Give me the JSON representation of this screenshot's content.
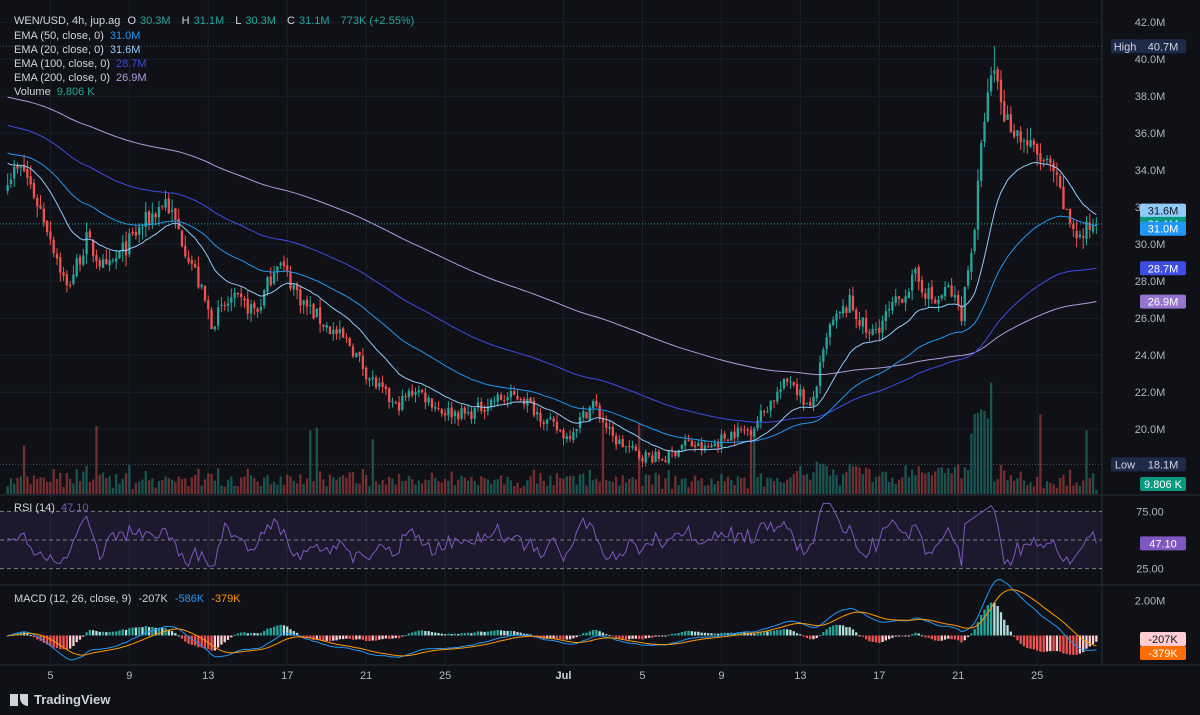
{
  "header": {
    "symbol": "WEN/USD, 4h, jup.ag",
    "o_label": "O",
    "o": "30.3M",
    "h_label": "H",
    "h": "31.1M",
    "l_label": "L",
    "l": "30.3M",
    "c_label": "C",
    "c": "31.1M",
    "change": "773K (+2.55%)"
  },
  "indicators": [
    {
      "label": "EMA (50, close, 0)",
      "value": "31.0M",
      "color": "#2196f3"
    },
    {
      "label": "EMA (20, close, 0)",
      "value": "31.6M",
      "color": "#90caf9"
    },
    {
      "label": "EMA (100, close, 0)",
      "value": "28.7M",
      "color": "#3d4de0"
    },
    {
      "label": "EMA (200, close, 0)",
      "value": "26.9M",
      "color": "#b39ddb"
    },
    {
      "label": "Volume",
      "value": "9.806 K",
      "color": "#26a69a"
    }
  ],
  "rsi": {
    "label": "RSI (14)",
    "value": "47.10",
    "color": "#7e57c2",
    "ticks": [
      "75.00",
      "25.00"
    ],
    "badge": "47.10"
  },
  "macd": {
    "label": "MACD (12, 26, close, 9)",
    "values": [
      "-207K",
      "-586K",
      "-379K"
    ],
    "value_colors": [
      "#d1d4dc",
      "#2196f3",
      "#ff9800"
    ],
    "ticks": [
      "2.00M"
    ],
    "badges": [
      "-207K",
      "-379K"
    ]
  },
  "price_badges": [
    {
      "label": "High",
      "value": "40.7M",
      "price": 40.7,
      "bg": "#1e2a4a"
    },
    {
      "label": "Low",
      "value": "18.1M",
      "price": 18.1,
      "bg": "#1e2a4a"
    },
    {
      "value": "31.6M",
      "price": 31.6,
      "bg": "#90caf9",
      "fg": "#131722"
    },
    {
      "value": "31.1M",
      "price": 31.1,
      "bg": "#089981",
      "fg": "#ffffff"
    },
    {
      "value": "31.0M",
      "price": 31.0,
      "bg": "#2196f3",
      "fg": "#ffffff"
    },
    {
      "value": "28.7M",
      "price": 28.7,
      "bg": "#3d4de0",
      "fg": "#ffffff"
    },
    {
      "value": "26.9M",
      "price": 26.9,
      "bg": "#9575cd",
      "fg": "#ffffff"
    }
  ],
  "volume_badge": "9.806 K",
  "brand": "TradingView",
  "colors": {
    "up": "#26a69a",
    "down": "#ef5350",
    "bg": "#0f1117",
    "grid": "#1c1f2a"
  },
  "chart_data": {
    "type": "candlestick",
    "title": "WEN/USD, 4h, jup.ag",
    "y_ticks": [
      20.0,
      22.0,
      24.0,
      26.0,
      28.0,
      30.0,
      32.0,
      34.0,
      36.0,
      38.0,
      40.0,
      42.0
    ],
    "y_tick_labels": [
      "20.0M",
      "22.0M",
      "24.0M",
      "26.0M",
      "28.0M",
      "30.0M",
      "32.0M",
      "34.0M",
      "36.0M",
      "38.0M",
      "40.0M",
      "42.0M"
    ],
    "ylim": [
      16.5,
      43.2
    ],
    "x_tick_labels": [
      "5",
      "9",
      "13",
      "17",
      "21",
      "25",
      "Jul",
      "5",
      "9",
      "13",
      "17",
      "21",
      "25"
    ],
    "x_tick_index": [
      13,
      37,
      61,
      85,
      109,
      133,
      169,
      193,
      217,
      241,
      265,
      289,
      313
    ],
    "close_anchors": [
      [
        0,
        33.8
      ],
      [
        5,
        34.0
      ],
      [
        12,
        31.0
      ],
      [
        18,
        27.6
      ],
      [
        24,
        30.2
      ],
      [
        30,
        28.5
      ],
      [
        40,
        30.8
      ],
      [
        48,
        32.4
      ],
      [
        56,
        29.0
      ],
      [
        62,
        25.8
      ],
      [
        68,
        27.0
      ],
      [
        76,
        26.4
      ],
      [
        82,
        29.2
      ],
      [
        90,
        26.8
      ],
      [
        98,
        25.4
      ],
      [
        104,
        24.6
      ],
      [
        110,
        22.8
      ],
      [
        118,
        21.2
      ],
      [
        124,
        22.2
      ],
      [
        132,
        21.0
      ],
      [
        140,
        20.8
      ],
      [
        148,
        21.6
      ],
      [
        156,
        21.8
      ],
      [
        164,
        20.4
      ],
      [
        170,
        19.6
      ],
      [
        178,
        21.4
      ],
      [
        184,
        19.5
      ],
      [
        192,
        18.6
      ],
      [
        200,
        18.4
      ],
      [
        206,
        19.3
      ],
      [
        212,
        18.9
      ],
      [
        220,
        19.8
      ],
      [
        226,
        20.0
      ],
      [
        232,
        21.5
      ],
      [
        238,
        22.8
      ],
      [
        244,
        21.0
      ],
      [
        250,
        25.5
      ],
      [
        256,
        26.8
      ],
      [
        262,
        25.0
      ],
      [
        268,
        26.3
      ],
      [
        276,
        28.2
      ],
      [
        282,
        26.8
      ],
      [
        286,
        27.6
      ],
      [
        290,
        26.3
      ],
      [
        294,
        31.0
      ],
      [
        297,
        37.0
      ],
      [
        300,
        39.5
      ],
      [
        303,
        37.0
      ],
      [
        308,
        35.8
      ],
      [
        312,
        35.0
      ],
      [
        318,
        33.8
      ],
      [
        322,
        31.5
      ],
      [
        326,
        30.3
      ],
      [
        330,
        31.1
      ]
    ],
    "ema_20_end": 31.6,
    "ema_50_end": 31.0,
    "ema_100_end": 28.7,
    "ema_200_end": 26.9,
    "high": 40.7,
    "low": 18.1,
    "rsi_last": 47.1,
    "rsi_levels": [
      75,
      50,
      25
    ],
    "macd_last": -207,
    "signal_last": -586,
    "hist_last": -379
  }
}
